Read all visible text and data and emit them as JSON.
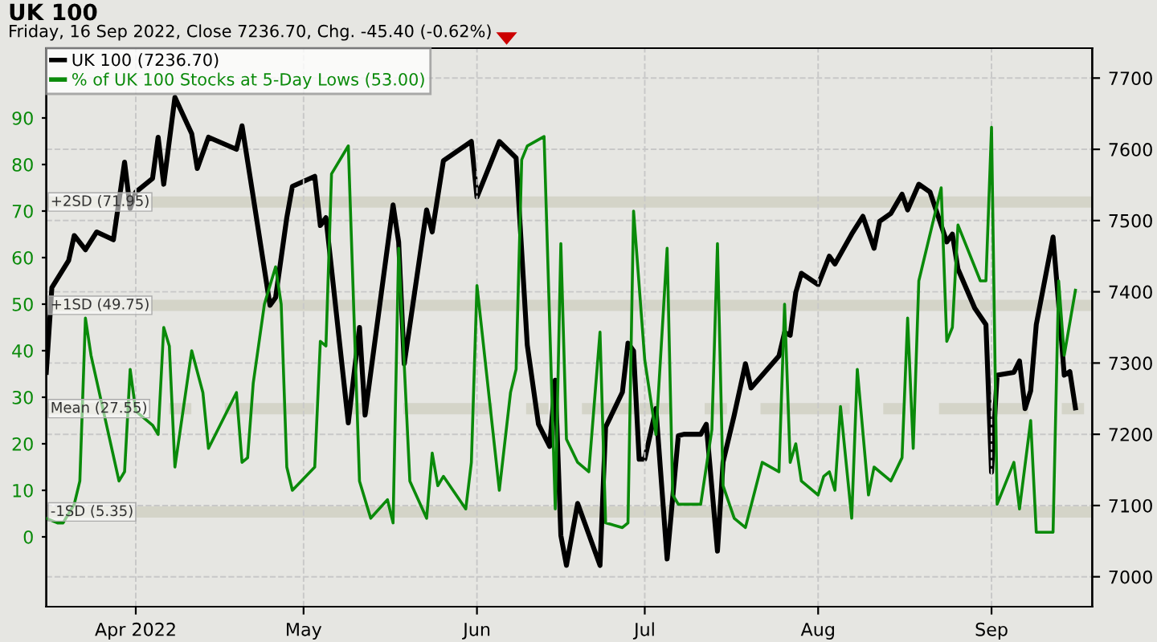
{
  "chart_data": {
    "type": "line",
    "title": "UK 100",
    "subtitle": "Friday, 16 Sep 2022, Close 7236.70, Chg. -45.40 (-0.62%)",
    "xlim": [
      "2022-03-16",
      "2022-09-19"
    ],
    "xticks": [
      {
        "value": "2022-04-01",
        "label": "Apr 2022"
      },
      {
        "value": "2022-05-01",
        "label": "May"
      },
      {
        "value": "2022-06-01",
        "label": "Jun"
      },
      {
        "value": "2022-07-01",
        "label": "Jul"
      },
      {
        "value": "2022-08-01",
        "label": "Aug"
      },
      {
        "value": "2022-09-01",
        "label": "Sep"
      }
    ],
    "ylim": [
      -15,
      105
    ],
    "yticks": [
      0,
      10,
      20,
      30,
      40,
      50,
      60,
      70,
      80,
      90
    ],
    "y2lim": [
      6958,
      7742
    ],
    "y2ticks": [
      7000,
      7100,
      7200,
      7300,
      7400,
      7500,
      7600,
      7700
    ],
    "grid": true,
    "legend": "top left",
    "line_style": "solid",
    "ref_lines": [
      {
        "axis": "y",
        "value": 71.95,
        "label": "+2SD (71.95)",
        "color": "#d4d4c8",
        "line_style": "solid"
      },
      {
        "axis": "y",
        "value": 49.75,
        "label": "+1SD (49.75)",
        "color": "#d4d4c8",
        "line_style": "solid"
      },
      {
        "axis": "y",
        "value": 27.55,
        "label": "Mean (27.55)",
        "color": "#d4d4c8",
        "line_style": "dashed"
      },
      {
        "axis": "y",
        "value": 5.35,
        "label": "-1SD (5.35)",
        "color": "#d4d4c8",
        "line_style": "solid"
      }
    ],
    "series": [
      {
        "name": "UK 100 (7236.70)",
        "color": "#000000",
        "axis": "y2",
        "x": [
          "2022-03-16",
          "2022-03-17",
          "2022-03-20",
          "2022-03-21",
          "2022-03-23",
          "2022-03-25",
          "2022-03-28",
          "2022-03-30",
          "2022-03-31",
          "2022-04-01",
          "2022-04-04",
          "2022-04-05",
          "2022-04-06",
          "2022-04-08",
          "2022-04-11",
          "2022-04-12",
          "2022-04-14",
          "2022-04-19",
          "2022-04-20",
          "2022-04-22",
          "2022-04-25",
          "2022-04-26",
          "2022-04-28",
          "2022-04-29",
          "2022-05-03",
          "2022-05-04",
          "2022-05-05",
          "2022-05-09",
          "2022-05-11",
          "2022-05-12",
          "2022-05-17",
          "2022-05-18",
          "2022-05-19",
          "2022-05-23",
          "2022-05-24",
          "2022-05-26",
          "2022-05-31",
          "2022-06-01",
          "2022-06-05",
          "2022-06-08",
          "2022-06-10",
          "2022-06-12",
          "2022-06-14",
          "2022-06-15",
          "2022-06-16",
          "2022-06-17",
          "2022-06-19",
          "2022-06-23",
          "2022-06-24",
          "2022-06-27",
          "2022-06-28",
          "2022-06-29",
          "2022-06-30",
          "2022-07-01",
          "2022-07-03",
          "2022-07-05",
          "2022-07-07",
          "2022-07-08",
          "2022-07-11",
          "2022-07-12",
          "2022-07-14",
          "2022-07-15",
          "2022-07-17",
          "2022-07-19",
          "2022-07-20",
          "2022-07-25",
          "2022-07-26",
          "2022-07-27",
          "2022-07-28",
          "2022-07-29",
          "2022-08-01",
          "2022-08-03",
          "2022-08-04",
          "2022-08-07",
          "2022-08-09",
          "2022-08-11",
          "2022-08-12",
          "2022-08-14",
          "2022-08-16",
          "2022-08-17",
          "2022-08-19",
          "2022-08-21",
          "2022-08-24",
          "2022-08-25",
          "2022-08-26",
          "2022-08-29",
          "2022-08-31",
          "2022-09-01",
          "2022-09-02",
          "2022-09-05",
          "2022-09-06",
          "2022-09-07",
          "2022-09-08",
          "2022-09-09",
          "2022-09-12",
          "2022-09-13",
          "2022-09-14",
          "2022-09-15",
          "2022-09-16"
        ],
        "values": [
          7287,
          7406,
          7444,
          7479,
          7459,
          7484,
          7473,
          7582,
          7517,
          7540,
          7559,
          7617,
          7551,
          7673,
          7622,
          7573,
          7617,
          7600,
          7633,
          7533,
          7381,
          7392,
          7504,
          7548,
          7562,
          7493,
          7504,
          7216,
          7350,
          7227,
          7522,
          7470,
          7299,
          7515,
          7484,
          7584,
          7611,
          7533,
          7611,
          7588,
          7325,
          7214,
          7183,
          7276,
          7058,
          7016,
          7103,
          7016,
          7210,
          7259,
          7328,
          7317,
          7165,
          7165,
          7236,
          7025,
          7198,
          7200,
          7200,
          7214,
          7036,
          7161,
          7227,
          7299,
          7265,
          7310,
          7343,
          7339,
          7399,
          7426,
          7410,
          7450,
          7439,
          7481,
          7506,
          7461,
          7499,
          7510,
          7537,
          7515,
          7551,
          7540,
          7470,
          7481,
          7432,
          7377,
          7354,
          7147,
          7283,
          7287,
          7303,
          7236,
          7261,
          7354,
          7477,
          7383,
          7283,
          7288,
          7237
        ]
      },
      {
        "name": "% of UK 100 Stocks at 5-Day Lows (53.00)",
        "color": "#0a8a0a",
        "axis": "y",
        "x": [
          "2022-03-16",
          "2022-03-18",
          "2022-03-19",
          "2022-03-21",
          "2022-03-22",
          "2022-03-23",
          "2022-03-24",
          "2022-03-29",
          "2022-03-30",
          "2022-03-31",
          "2022-04-01",
          "2022-04-04",
          "2022-04-05",
          "2022-04-06",
          "2022-04-07",
          "2022-04-08",
          "2022-04-11",
          "2022-04-13",
          "2022-04-14",
          "2022-04-19",
          "2022-04-20",
          "2022-04-21",
          "2022-04-22",
          "2022-04-24",
          "2022-04-26",
          "2022-04-27",
          "2022-04-28",
          "2022-04-29",
          "2022-05-03",
          "2022-05-04",
          "2022-05-05",
          "2022-05-06",
          "2022-05-09",
          "2022-05-11",
          "2022-05-13",
          "2022-05-16",
          "2022-05-17",
          "2022-05-18",
          "2022-05-20",
          "2022-05-23",
          "2022-05-24",
          "2022-05-25",
          "2022-05-26",
          "2022-05-30",
          "2022-05-31",
          "2022-06-01",
          "2022-06-05",
          "2022-06-07",
          "2022-06-08",
          "2022-06-09",
          "2022-06-10",
          "2022-06-13",
          "2022-06-15",
          "2022-06-16",
          "2022-06-17",
          "2022-06-19",
          "2022-06-21",
          "2022-06-23",
          "2022-06-24",
          "2022-06-27",
          "2022-06-28",
          "2022-06-29",
          "2022-07-01",
          "2022-07-03",
          "2022-07-05",
          "2022-07-06",
          "2022-07-07",
          "2022-07-11",
          "2022-07-13",
          "2022-07-14",
          "2022-07-15",
          "2022-07-17",
          "2022-07-19",
          "2022-07-22",
          "2022-07-25",
          "2022-07-26",
          "2022-07-27",
          "2022-07-28",
          "2022-07-29",
          "2022-08-01",
          "2022-08-02",
          "2022-08-03",
          "2022-08-04",
          "2022-08-05",
          "2022-08-07",
          "2022-08-08",
          "2022-08-10",
          "2022-08-11",
          "2022-08-14",
          "2022-08-16",
          "2022-08-17",
          "2022-08-18",
          "2022-08-19",
          "2022-08-23",
          "2022-08-24",
          "2022-08-25",
          "2022-08-26",
          "2022-08-30",
          "2022-08-31",
          "2022-09-01",
          "2022-09-02",
          "2022-09-05",
          "2022-09-06",
          "2022-09-08",
          "2022-09-09",
          "2022-09-12",
          "2022-09-13",
          "2022-09-14",
          "2022-09-16"
        ],
        "values": [
          4,
          3,
          3,
          7,
          12,
          47,
          39,
          12,
          14,
          36,
          27,
          24,
          22,
          45,
          41,
          15,
          40,
          31,
          19,
          31,
          16,
          17,
          33,
          50,
          58,
          50,
          15,
          10,
          15,
          42,
          41,
          78,
          84,
          12,
          4,
          8,
          3,
          62,
          12,
          4,
          18,
          11,
          13,
          6,
          16,
          54,
          10,
          31,
          36,
          81,
          84,
          86,
          6,
          63,
          21,
          16,
          14,
          44,
          3,
          2,
          3,
          70,
          38,
          22,
          62,
          9,
          7,
          7,
          23,
          63,
          11,
          4,
          2,
          16,
          14,
          50,
          16,
          20,
          12,
          9,
          13,
          14,
          10,
          28,
          4,
          36,
          9,
          15,
          12,
          17,
          47,
          19,
          55,
          75,
          42,
          45,
          67,
          55,
          55,
          88,
          7,
          16,
          6,
          25,
          1,
          1,
          55,
          39,
          53
        ]
      }
    ]
  }
}
